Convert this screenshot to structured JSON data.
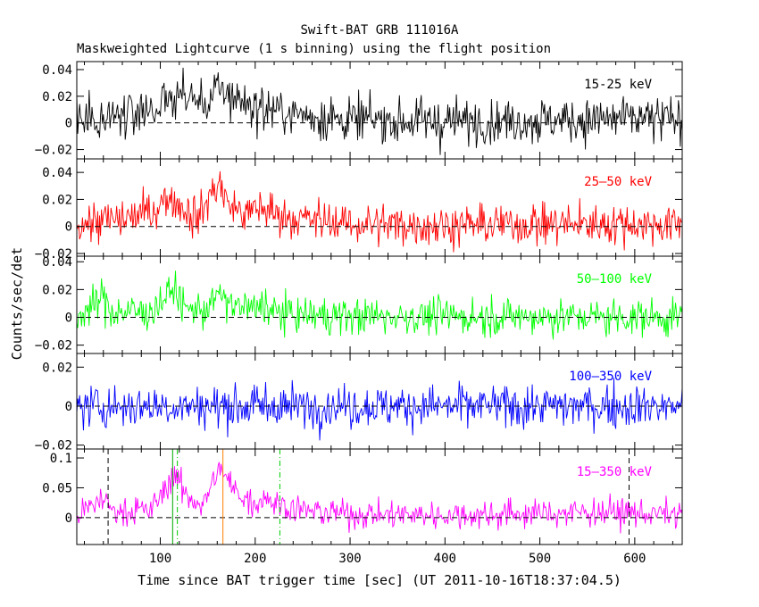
{
  "figure": {
    "title": "Swift-BAT GRB 111016A",
    "subtitle": "Maskweighted Lightcurve (1 s binning) using the flight position",
    "xlabel": "Time since BAT trigger time [sec] (UT 2011-10-16T18:37:04.5)",
    "ylabel": "Counts/sec/det"
  },
  "chart_data": {
    "type": "line",
    "xlim": [
      12,
      650
    ],
    "x_ticks": [
      100,
      200,
      300,
      400,
      500,
      600
    ],
    "x_tick_labels": [
      "100",
      "200",
      "300",
      "400",
      "500",
      "600"
    ],
    "markers": [
      {
        "x": 45,
        "color": "#000000",
        "style": "dashed"
      },
      {
        "x": 113,
        "color": "#00aa00",
        "style": "solid"
      },
      {
        "x": 118,
        "color": "#00cc00",
        "style": "dash-dot"
      },
      {
        "x": 166,
        "color": "#ff7f00",
        "style": "solid"
      },
      {
        "x": 226,
        "color": "#00cc00",
        "style": "dash-dot"
      },
      {
        "x": 594,
        "color": "#000000",
        "style": "dashed"
      }
    ],
    "panels": [
      {
        "name": "15-25 keV",
        "color": "#000000",
        "ylim": [
          -0.027,
          0.046
        ],
        "y_ticks": [
          -0.02,
          0,
          0.02,
          0.04
        ],
        "y_tick_labels": [
          "−0.02",
          "0",
          "0.02",
          "0.04"
        ],
        "noise": 0.0085,
        "x": [
          12,
          60,
          100,
          118,
          150,
          158,
          175,
          200,
          240,
          300,
          400,
          500,
          600,
          650
        ],
        "y": [
          0.003,
          0.006,
          0.012,
          0.022,
          0.014,
          0.024,
          0.021,
          0.012,
          0.007,
          0.002,
          0.001,
          0.002,
          0.003,
          0.002
        ]
      },
      {
        "name": "25–50 keV",
        "color": "#ff0000",
        "ylim": [
          -0.022,
          0.05
        ],
        "y_ticks": [
          -0.02,
          0,
          0.02,
          0.04
        ],
        "y_tick_labels": [
          "−0.02",
          "0",
          "0.02",
          "0.04"
        ],
        "noise": 0.0075,
        "x": [
          12,
          60,
          90,
          110,
          120,
          140,
          155,
          162,
          170,
          190,
          205,
          215,
          240,
          300,
          400,
          500,
          600,
          650
        ],
        "y": [
          0.002,
          0.005,
          0.011,
          0.022,
          0.016,
          0.006,
          0.026,
          0.033,
          0.018,
          0.008,
          0.015,
          0.011,
          0.006,
          0.002,
          0.001,
          0.002,
          0.002,
          0.001
        ]
      },
      {
        "name": "50–100 keV",
        "color": "#00ff00",
        "ylim": [
          -0.026,
          0.044
        ],
        "y_ticks": [
          -0.02,
          0,
          0.02,
          0.04
        ],
        "y_tick_labels": [
          "−0.02",
          "0",
          "0.02",
          "0.04"
        ],
        "noise": 0.0065,
        "x": [
          12,
          30,
          38,
          50,
          90,
          108,
          115,
          125,
          150,
          160,
          175,
          200,
          208,
          215,
          240,
          300,
          650
        ],
        "y": [
          0.001,
          0.008,
          0.015,
          0.004,
          0.004,
          0.016,
          0.022,
          0.006,
          0.006,
          0.016,
          0.009,
          0.005,
          0.012,
          0.004,
          0.002,
          0.001,
          0.0
        ]
      },
      {
        "name": "100–350 keV",
        "color": "#0000ff",
        "ylim": [
          -0.022,
          0.027
        ],
        "y_ticks": [
          -0.02,
          0,
          0.02
        ],
        "y_tick_labels": [
          "−0.02",
          "0",
          "0.02"
        ],
        "noise": 0.0055,
        "x": [
          12,
          650
        ],
        "y": [
          0.0,
          0.0
        ]
      },
      {
        "name": "15–350 keV",
        "color": "#ff00ff",
        "ylim": [
          -0.045,
          0.115
        ],
        "y_ticks": [
          0,
          0.05,
          0.1
        ],
        "y_tick_labels": [
          "0",
          "0.05",
          "0.1"
        ],
        "noise": 0.012,
        "x": [
          12,
          30,
          38,
          50,
          90,
          108,
          115,
          125,
          145,
          158,
          165,
          175,
          200,
          210,
          220,
          250,
          300,
          400,
          500,
          550,
          600,
          650
        ],
        "y": [
          0.005,
          0.02,
          0.035,
          0.012,
          0.012,
          0.055,
          0.075,
          0.04,
          0.02,
          0.07,
          0.08,
          0.05,
          0.022,
          0.038,
          0.025,
          0.012,
          0.006,
          0.004,
          0.007,
          0.01,
          0.008,
          0.005
        ]
      }
    ]
  }
}
